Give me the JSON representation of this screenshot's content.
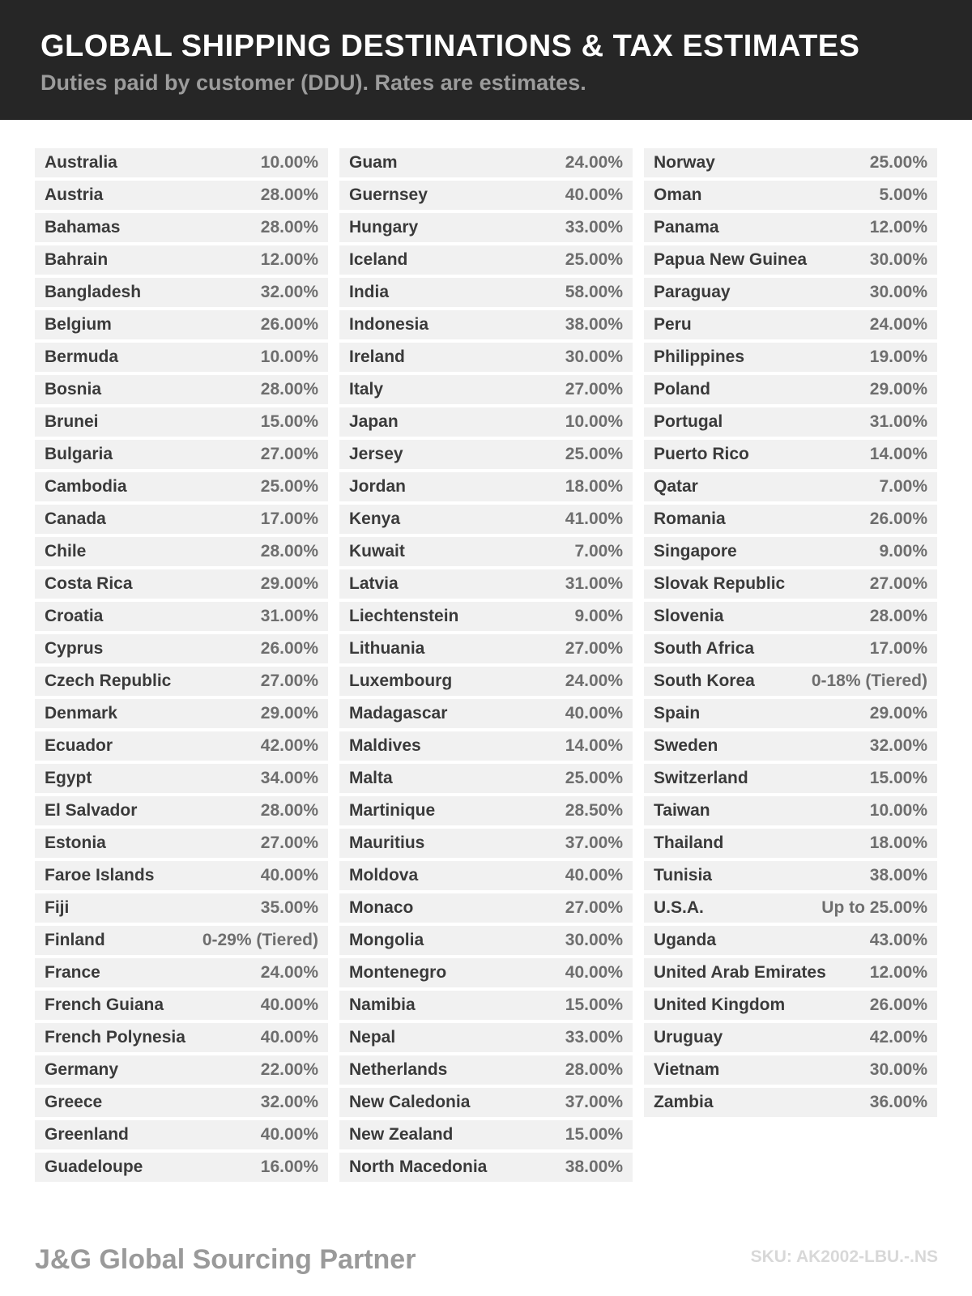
{
  "header": {
    "title": "GLOBAL SHIPPING DESTINATIONS & TAX ESTIMATES",
    "subtitle": "Duties paid by customer (DDU). Rates are estimates."
  },
  "colors": {
    "banner_bg": "#262626",
    "title": "#ffffff",
    "subtitle": "#9c9c9c",
    "row_bg": "#f1f1f1",
    "country_text": "#3a3a3a",
    "rate_text": "#6e6e6e",
    "brand_text": "#9a9a9a",
    "sku_text": "#d8d8d8"
  },
  "table": {
    "columns": [
      {
        "rows": [
          {
            "country": "Australia",
            "rate": "10.00%"
          },
          {
            "country": "Austria",
            "rate": "28.00%"
          },
          {
            "country": "Bahamas",
            "rate": "28.00%"
          },
          {
            "country": "Bahrain",
            "rate": "12.00%"
          },
          {
            "country": "Bangladesh",
            "rate": "32.00%"
          },
          {
            "country": "Belgium",
            "rate": "26.00%"
          },
          {
            "country": "Bermuda",
            "rate": "10.00%"
          },
          {
            "country": "Bosnia",
            "rate": "28.00%"
          },
          {
            "country": "Brunei",
            "rate": "15.00%"
          },
          {
            "country": "Bulgaria",
            "rate": "27.00%"
          },
          {
            "country": "Cambodia",
            "rate": "25.00%"
          },
          {
            "country": "Canada",
            "rate": "17.00%"
          },
          {
            "country": "Chile",
            "rate": "28.00%"
          },
          {
            "country": "Costa Rica",
            "rate": "29.00%"
          },
          {
            "country": "Croatia",
            "rate": "31.00%"
          },
          {
            "country": "Cyprus",
            "rate": "26.00%"
          },
          {
            "country": "Czech Republic",
            "rate": "27.00%"
          },
          {
            "country": "Denmark",
            "rate": "29.00%"
          },
          {
            "country": "Ecuador",
            "rate": "42.00%"
          },
          {
            "country": "Egypt",
            "rate": "34.00%"
          },
          {
            "country": "El Salvador",
            "rate": "28.00%"
          },
          {
            "country": "Estonia",
            "rate": "27.00%"
          },
          {
            "country": "Faroe Islands",
            "rate": "40.00%"
          },
          {
            "country": "Fiji",
            "rate": "35.00%"
          },
          {
            "country": "Finland",
            "rate": "0-29% (Tiered)"
          },
          {
            "country": "France",
            "rate": "24.00%"
          },
          {
            "country": "French Guiana",
            "rate": "40.00%"
          },
          {
            "country": "French Polynesia",
            "rate": "40.00%"
          },
          {
            "country": "Germany",
            "rate": "22.00%"
          },
          {
            "country": "Greece",
            "rate": "32.00%"
          },
          {
            "country": "Greenland",
            "rate": "40.00%"
          },
          {
            "country": "Guadeloupe",
            "rate": "16.00%"
          }
        ]
      },
      {
        "rows": [
          {
            "country": "Guam",
            "rate": "24.00%"
          },
          {
            "country": "Guernsey",
            "rate": "40.00%"
          },
          {
            "country": "Hungary",
            "rate": "33.00%"
          },
          {
            "country": "Iceland",
            "rate": "25.00%"
          },
          {
            "country": "India",
            "rate": "58.00%"
          },
          {
            "country": "Indonesia",
            "rate": "38.00%"
          },
          {
            "country": "Ireland",
            "rate": "30.00%"
          },
          {
            "country": "Italy",
            "rate": "27.00%"
          },
          {
            "country": "Japan",
            "rate": "10.00%"
          },
          {
            "country": "Jersey",
            "rate": "25.00%"
          },
          {
            "country": "Jordan",
            "rate": "18.00%"
          },
          {
            "country": "Kenya",
            "rate": "41.00%"
          },
          {
            "country": "Kuwait",
            "rate": "7.00%"
          },
          {
            "country": "Latvia",
            "rate": "31.00%"
          },
          {
            "country": "Liechtenstein",
            "rate": "9.00%"
          },
          {
            "country": "Lithuania",
            "rate": "27.00%"
          },
          {
            "country": "Luxembourg",
            "rate": "24.00%"
          },
          {
            "country": "Madagascar",
            "rate": "40.00%"
          },
          {
            "country": "Maldives",
            "rate": "14.00%"
          },
          {
            "country": "Malta",
            "rate": "25.00%"
          },
          {
            "country": "Martinique",
            "rate": "28.50%"
          },
          {
            "country": "Mauritius",
            "rate": "37.00%"
          },
          {
            "country": "Moldova",
            "rate": "40.00%"
          },
          {
            "country": "Monaco",
            "rate": "27.00%"
          },
          {
            "country": "Mongolia",
            "rate": "30.00%"
          },
          {
            "country": "Montenegro",
            "rate": "40.00%"
          },
          {
            "country": "Namibia",
            "rate": "15.00%"
          },
          {
            "country": "Nepal",
            "rate": "33.00%"
          },
          {
            "country": "Netherlands",
            "rate": "28.00%"
          },
          {
            "country": "New Caledonia",
            "rate": "37.00%"
          },
          {
            "country": "New Zealand",
            "rate": "15.00%"
          },
          {
            "country": "North Macedonia",
            "rate": "38.00%"
          }
        ]
      },
      {
        "rows": [
          {
            "country": "Norway",
            "rate": "25.00%"
          },
          {
            "country": "Oman",
            "rate": "5.00%"
          },
          {
            "country": "Panama",
            "rate": "12.00%"
          },
          {
            "country": "Papua New Guinea",
            "rate": "30.00%"
          },
          {
            "country": "Paraguay",
            "rate": "30.00%"
          },
          {
            "country": "Peru",
            "rate": "24.00%"
          },
          {
            "country": "Philippines",
            "rate": "19.00%"
          },
          {
            "country": "Poland",
            "rate": "29.00%"
          },
          {
            "country": "Portugal",
            "rate": "31.00%"
          },
          {
            "country": "Puerto Rico",
            "rate": "14.00%"
          },
          {
            "country": "Qatar",
            "rate": "7.00%"
          },
          {
            "country": "Romania",
            "rate": "26.00%"
          },
          {
            "country": "Singapore",
            "rate": "9.00%"
          },
          {
            "country": "Slovak Republic",
            "rate": "27.00%"
          },
          {
            "country": "Slovenia",
            "rate": "28.00%"
          },
          {
            "country": "South Africa",
            "rate": "17.00%"
          },
          {
            "country": "South Korea",
            "rate": "0-18% (Tiered)"
          },
          {
            "country": "Spain",
            "rate": "29.00%"
          },
          {
            "country": "Sweden",
            "rate": "32.00%"
          },
          {
            "country": "Switzerland",
            "rate": "15.00%"
          },
          {
            "country": "Taiwan",
            "rate": "10.00%"
          },
          {
            "country": "Thailand",
            "rate": "18.00%"
          },
          {
            "country": "Tunisia",
            "rate": "38.00%"
          },
          {
            "country": "U.S.A.",
            "rate": "Up to 25.00%"
          },
          {
            "country": "Uganda",
            "rate": "43.00%"
          },
          {
            "country": "United Arab Emirates",
            "rate": "12.00%"
          },
          {
            "country": "United Kingdom",
            "rate": "26.00%"
          },
          {
            "country": "Uruguay",
            "rate": "42.00%"
          },
          {
            "country": "Vietnam",
            "rate": "30.00%"
          },
          {
            "country": "Zambia",
            "rate": "36.00%"
          }
        ]
      }
    ]
  },
  "footer": {
    "brand": "J&G Global Sourcing Partner",
    "sku": "SKU: AK2002-LBU.-.NS"
  }
}
